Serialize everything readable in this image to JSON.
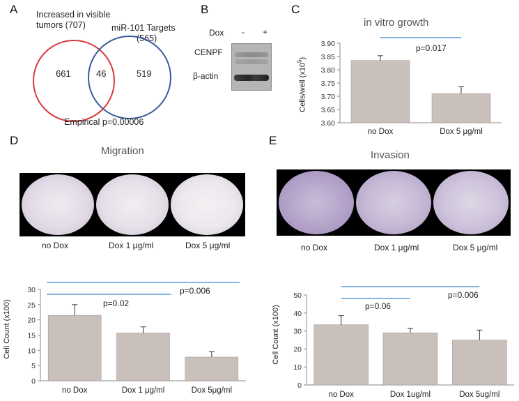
{
  "panels": {
    "A": {
      "letter": "A",
      "left_label_line1": "Increased in visible",
      "left_label_line2": "tumors (707)",
      "right_label_line1": "miR-101 Targets",
      "right_label_line2": "(565)",
      "left_only": "661",
      "overlap": "46",
      "right_only": "519",
      "pvalue": "Empirical p=0.00006",
      "colors": {
        "left_circle": "#d93a3a",
        "right_circle": "#3a5a9c"
      }
    },
    "B": {
      "letter": "B",
      "dox_label": "Dox",
      "lane_minus": "-",
      "lane_plus": "+",
      "row1": "CENPF",
      "row2": "β-actin"
    },
    "C": {
      "letter": "C",
      "title": "in vitro growth",
      "ylabel": "Cells/well (x10",
      "ylabel_sup": "5",
      "ylabel_close": ")",
      "pvalue": "p=0.017"
    },
    "D": {
      "letter": "D",
      "title": "Migration",
      "captions": [
        "no Dox",
        "Dox 1 μg/ml",
        "Dox 5 μg/ml"
      ],
      "ylabel": "Cell Count (x100)",
      "pvalue1": "p=0.02",
      "pvalue2": "p=0.006"
    },
    "E": {
      "letter": "E",
      "title": "Invasion",
      "captions": [
        "no Dox",
        "Dox 1 μg/ml",
        "Dox 5 μg/ml"
      ],
      "ylabel": "Cell Count (x100)",
      "pvalue1": "p=0.06",
      "pvalue2": "p=0.006"
    }
  },
  "chart_data": [
    {
      "id": "C",
      "type": "bar",
      "title": "in vitro growth",
      "categories": [
        "no Dox",
        "Dox 5 μg/ml"
      ],
      "values": [
        3.835,
        3.71
      ],
      "errors": [
        0.018,
        0.026
      ],
      "ylim": [
        3.6,
        3.9
      ],
      "yticks": [
        "3.60",
        "3.65",
        "3.70",
        "3.75",
        "3.80",
        "3.85",
        "3.90"
      ],
      "ylabel": "Cells/well (x10^5)",
      "bar_color": "#c9c0bb",
      "line_color": "#5b9bd5"
    },
    {
      "id": "D",
      "type": "bar",
      "categories": [
        "no Dox",
        "Dox 1 μg/ml",
        "Dox 5μg/ml"
      ],
      "values": [
        21.5,
        15.7,
        7.8
      ],
      "errors": [
        3.5,
        2.0,
        1.7
      ],
      "ylim": [
        0,
        30
      ],
      "yticks": [
        "0",
        "5",
        "10",
        "15",
        "20",
        "25",
        "30"
      ],
      "ylabel": "Cell Count (x100)",
      "bar_color": "#c9c0bb",
      "line_color": "#5b9bd5"
    },
    {
      "id": "E",
      "type": "bar",
      "categories": [
        "no Dox",
        "Dox 1ug/ml",
        "Dox 5ug/ml"
      ],
      "values": [
        33.5,
        29.0,
        25.0
      ],
      "errors": [
        5.0,
        2.5,
        5.5
      ],
      "ylim": [
        0,
        50
      ],
      "yticks": [
        "0",
        "10",
        "20",
        "30",
        "40",
        "50"
      ],
      "ylabel": "Cell Count (x100)",
      "bar_color": "#c9c0bb",
      "line_color": "#5b9bd5"
    }
  ]
}
